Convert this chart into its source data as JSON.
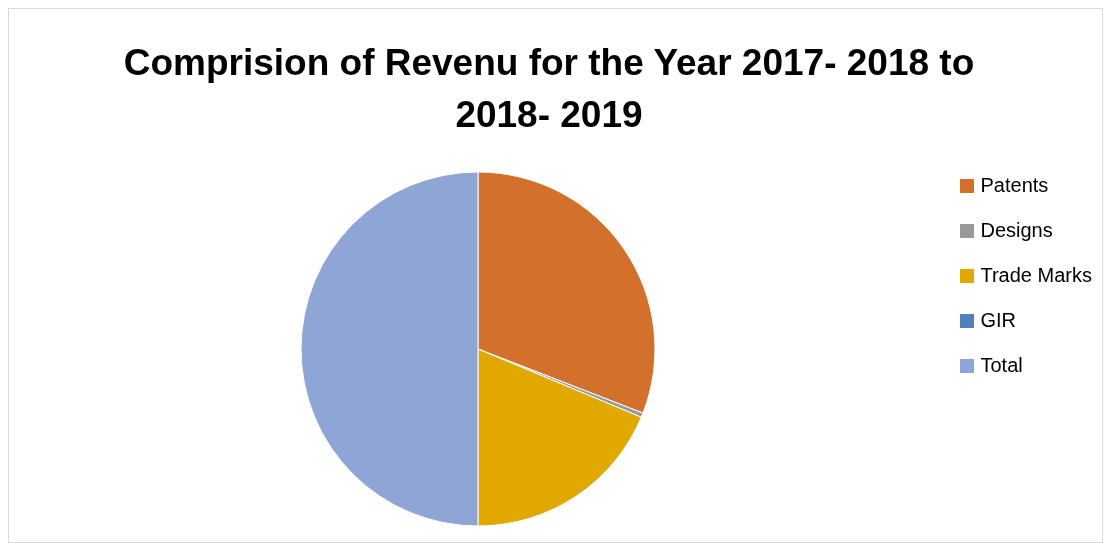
{
  "chart_data": {
    "type": "pie",
    "title": "Comprision of Revenu  for the Year 2017- 2018 to 2018- 2019",
    "categories": [
      "Patents",
      "Designs",
      "Trade Marks",
      "GIR",
      "Total"
    ],
    "values": [
      30.9,
      0.4,
      18.7,
      null,
      50
    ],
    "colors": [
      "#d2702c",
      "#999999",
      "#e0a800",
      "#4f81bd",
      "#8fa5d6"
    ],
    "legend": "right"
  }
}
